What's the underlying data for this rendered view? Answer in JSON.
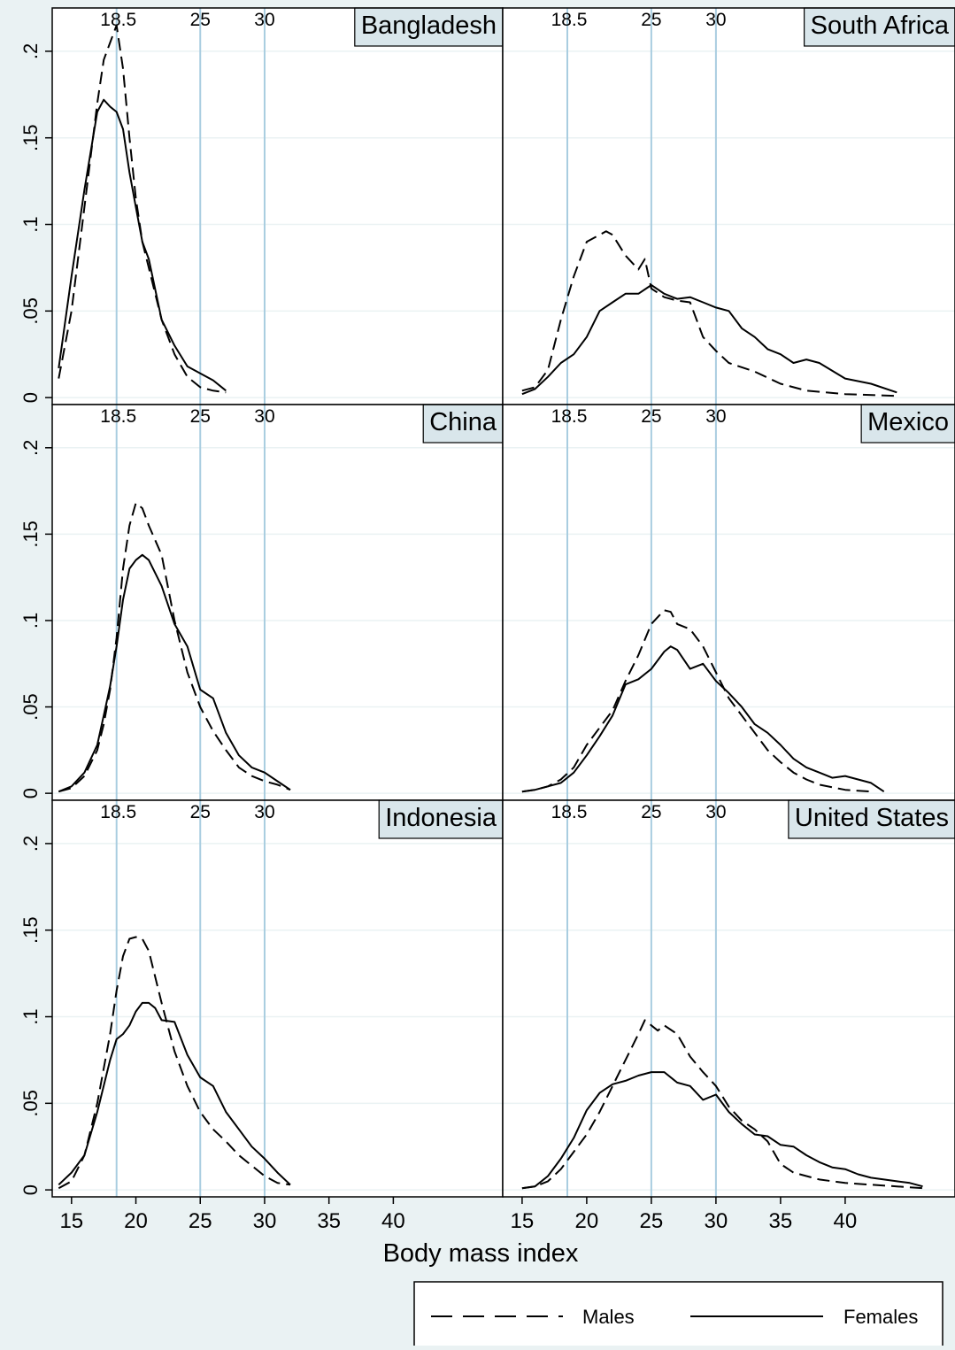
{
  "chart_data": {
    "type": "line",
    "xlabel": "Body mass index",
    "ylabel": "",
    "x_ticks": [
      15,
      20,
      25,
      30,
      35,
      40
    ],
    "y_ticks": [
      0,
      0.05,
      0.1,
      0.15,
      0.2
    ],
    "y_tick_labels": [
      "0",
      ".05",
      ".1",
      ".15",
      ".2"
    ],
    "xlim": [
      13.5,
      48.5
    ],
    "ylim": [
      -0.003,
      0.225
    ],
    "reference_lines": [
      {
        "value": 18.5,
        "label": "18.5"
      },
      {
        "value": 25,
        "label": "25"
      },
      {
        "value": 30,
        "label": "30"
      }
    ],
    "legend": {
      "position": "bottom-right",
      "males": "Males",
      "females": "Females"
    },
    "panels": [
      {
        "title": "Bangladesh",
        "series": [
          {
            "name": "Males",
            "style": "dashed",
            "x": [
              14,
              15,
              16,
              17,
              17.5,
              18,
              18.5,
              19,
              19.5,
              20,
              20.5,
              21,
              22,
              23,
              24,
              25,
              26,
              27
            ],
            "y": [
              0.011,
              0.05,
              0.11,
              0.17,
              0.195,
              0.205,
              0.215,
              0.19,
              0.15,
              0.115,
              0.09,
              0.075,
              0.045,
              0.025,
              0.012,
              0.006,
              0.004,
              0.003
            ]
          },
          {
            "name": "Females",
            "style": "solid",
            "x": [
              14,
              15,
              16,
              17,
              17.5,
              18,
              18.5,
              19,
              19.5,
              20,
              20.5,
              21,
              22,
              23,
              24,
              25,
              26,
              27
            ],
            "y": [
              0.017,
              0.07,
              0.12,
              0.165,
              0.172,
              0.168,
              0.165,
              0.155,
              0.13,
              0.11,
              0.09,
              0.08,
              0.045,
              0.03,
              0.018,
              0.014,
              0.01,
              0.004
            ]
          }
        ]
      },
      {
        "title": "South Africa",
        "series": [
          {
            "name": "Males",
            "style": "dashed",
            "x": [
              15,
              16,
              17,
              18,
              19,
              20,
              21,
              21.5,
              22,
              23,
              24,
              24.5,
              25,
              26,
              27,
              28,
              29,
              30,
              31,
              33,
              35,
              37,
              40,
              44
            ],
            "y": [
              0.004,
              0.006,
              0.016,
              0.045,
              0.07,
              0.09,
              0.094,
              0.096,
              0.094,
              0.082,
              0.074,
              0.08,
              0.063,
              0.058,
              0.056,
              0.055,
              0.035,
              0.027,
              0.02,
              0.015,
              0.008,
              0.004,
              0.002,
              0.001
            ]
          },
          {
            "name": "Females",
            "style": "solid",
            "x": [
              15,
              16,
              17,
              18,
              19,
              20,
              21,
              22,
              23,
              24,
              25,
              26,
              27,
              28,
              29,
              30,
              31,
              32,
              33,
              34,
              35,
              36,
              37,
              38,
              40,
              42,
              44
            ],
            "y": [
              0.002,
              0.005,
              0.012,
              0.02,
              0.025,
              0.035,
              0.05,
              0.055,
              0.06,
              0.06,
              0.065,
              0.06,
              0.057,
              0.058,
              0.055,
              0.052,
              0.05,
              0.04,
              0.035,
              0.028,
              0.025,
              0.02,
              0.022,
              0.02,
              0.011,
              0.008,
              0.003
            ]
          }
        ]
      },
      {
        "title": "China",
        "series": [
          {
            "name": "Males",
            "style": "dashed",
            "x": [
              14,
              15,
              16,
              17,
              17.5,
              18,
              18.5,
              19,
              19.5,
              20,
              20.5,
              21,
              22,
              23,
              24,
              25,
              26,
              27,
              28,
              29,
              30,
              31,
              32
            ],
            "y": [
              0.001,
              0.003,
              0.01,
              0.025,
              0.04,
              0.06,
              0.09,
              0.13,
              0.155,
              0.168,
              0.165,
              0.155,
              0.138,
              0.1,
              0.07,
              0.05,
              0.036,
              0.025,
              0.015,
              0.01,
              0.007,
              0.005,
              0.002
            ]
          },
          {
            "name": "Females",
            "style": "solid",
            "x": [
              14,
              15,
              16,
              17,
              17.5,
              18,
              18.5,
              19,
              19.5,
              20,
              20.5,
              21,
              22,
              23,
              24,
              25,
              26,
              27,
              28,
              29,
              30,
              31,
              32
            ],
            "y": [
              0.001,
              0.004,
              0.012,
              0.028,
              0.045,
              0.062,
              0.085,
              0.112,
              0.13,
              0.135,
              0.138,
              0.135,
              0.12,
              0.098,
              0.085,
              0.06,
              0.055,
              0.035,
              0.022,
              0.015,
              0.012,
              0.007,
              0.002
            ]
          }
        ]
      },
      {
        "title": "Mexico",
        "series": [
          {
            "name": "Males",
            "style": "dashed",
            "x": [
              15,
              16,
              17,
              18,
              19,
              20,
              21,
              22,
              23,
              24,
              25,
              26,
              26.5,
              27,
              28,
              29,
              30,
              31,
              32,
              33,
              34,
              35,
              36,
              37,
              38,
              40,
              42
            ],
            "y": [
              0.001,
              0.002,
              0.004,
              0.008,
              0.015,
              0.028,
              0.038,
              0.048,
              0.065,
              0.08,
              0.098,
              0.106,
              0.105,
              0.098,
              0.095,
              0.085,
              0.07,
              0.055,
              0.045,
              0.035,
              0.025,
              0.018,
              0.012,
              0.008,
              0.005,
              0.002,
              0.001
            ]
          },
          {
            "name": "Females",
            "style": "solid",
            "x": [
              15,
              16,
              17,
              18,
              19,
              20,
              21,
              22,
              23,
              24,
              25,
              26,
              26.5,
              27,
              28,
              29,
              30,
              31,
              32,
              33,
              34,
              35,
              36,
              37,
              38,
              39,
              40,
              42,
              43
            ],
            "y": [
              0.001,
              0.002,
              0.004,
              0.006,
              0.012,
              0.022,
              0.033,
              0.045,
              0.063,
              0.066,
              0.072,
              0.082,
              0.085,
              0.083,
              0.072,
              0.075,
              0.065,
              0.058,
              0.05,
              0.04,
              0.035,
              0.028,
              0.02,
              0.015,
              0.012,
              0.009,
              0.01,
              0.006,
              0.001
            ]
          }
        ]
      },
      {
        "title": "Indonesia",
        "series": [
          {
            "name": "Males",
            "style": "dashed",
            "x": [
              14,
              15,
              16,
              17,
              18,
              18.5,
              19,
              19.5,
              20,
              20.5,
              21,
              22,
              23,
              24,
              25,
              26,
              27,
              28,
              29,
              30,
              31,
              32
            ],
            "y": [
              0.001,
              0.005,
              0.02,
              0.05,
              0.09,
              0.115,
              0.135,
              0.145,
              0.146,
              0.145,
              0.138,
              0.108,
              0.08,
              0.06,
              0.045,
              0.035,
              0.028,
              0.02,
              0.014,
              0.008,
              0.004,
              0.003
            ]
          },
          {
            "name": "Females",
            "style": "solid",
            "x": [
              14,
              15,
              16,
              17,
              18,
              18.5,
              19,
              19.5,
              20,
              20.5,
              21,
              21.5,
              22,
              23,
              24,
              25,
              26,
              27,
              28,
              29,
              30,
              31,
              32
            ],
            "y": [
              0.003,
              0.01,
              0.02,
              0.045,
              0.075,
              0.087,
              0.09,
              0.095,
              0.103,
              0.108,
              0.108,
              0.105,
              0.098,
              0.097,
              0.078,
              0.065,
              0.06,
              0.045,
              0.035,
              0.025,
              0.018,
              0.01,
              0.003
            ]
          }
        ]
      },
      {
        "title": "United States",
        "series": [
          {
            "name": "Males",
            "style": "dashed",
            "x": [
              15,
              16,
              17,
              18,
              19,
              20,
              21,
              22,
              23,
              24,
              24.5,
              25,
              25.5,
              26,
              27,
              28,
              29,
              30,
              31,
              32,
              33,
              34,
              35,
              36,
              38,
              40,
              42,
              44,
              46
            ],
            "y": [
              0.001,
              0.002,
              0.005,
              0.012,
              0.022,
              0.032,
              0.045,
              0.06,
              0.075,
              0.09,
              0.098,
              0.095,
              0.092,
              0.095,
              0.09,
              0.077,
              0.068,
              0.06,
              0.048,
              0.04,
              0.035,
              0.028,
              0.015,
              0.01,
              0.006,
              0.004,
              0.003,
              0.002,
              0.001
            ]
          },
          {
            "name": "Females",
            "style": "solid",
            "x": [
              15,
              16,
              17,
              18,
              19,
              20,
              21,
              22,
              23,
              24,
              25,
              26,
              27,
              28,
              29,
              30,
              31,
              32,
              33,
              34,
              35,
              36,
              37,
              38,
              39,
              40,
              41,
              42,
              43,
              44,
              45,
              46
            ],
            "y": [
              0.001,
              0.002,
              0.008,
              0.018,
              0.03,
              0.046,
              0.056,
              0.061,
              0.063,
              0.066,
              0.068,
              0.068,
              0.062,
              0.06,
              0.052,
              0.055,
              0.045,
              0.038,
              0.032,
              0.031,
              0.026,
              0.025,
              0.02,
              0.016,
              0.013,
              0.012,
              0.009,
              0.007,
              0.006,
              0.005,
              0.004,
              0.002
            ]
          }
        ]
      }
    ]
  }
}
